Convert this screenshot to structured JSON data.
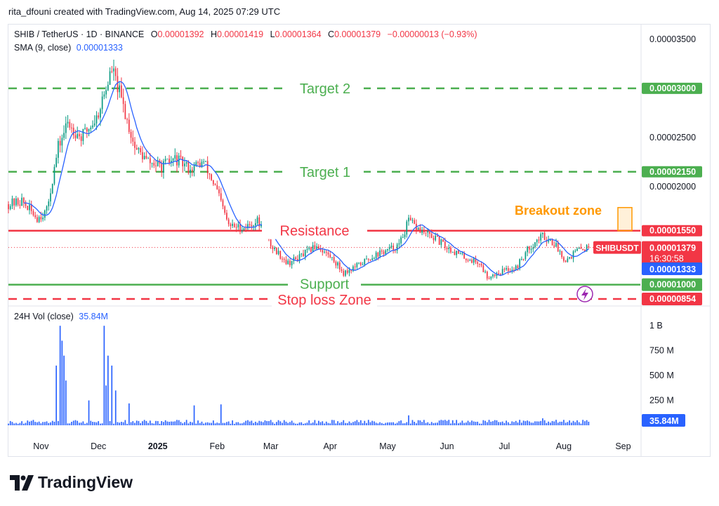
{
  "header": {
    "credit": "rita_dfouni created with TradingView.com, Aug 14, 2025 07:29 UTC"
  },
  "legend": {
    "symbol": "SHIB / TetherUS · 1D · BINANCE",
    "open_label": "O",
    "open": "0.00001392",
    "high_label": "H",
    "high": "0.00001419",
    "low_label": "L",
    "low": "0.00001364",
    "close_label": "C",
    "close": "0.00001379",
    "change": "−0.00000013 (−0.93%)",
    "sma_label": "SMA (9, close)",
    "sma_value": "0.00001333",
    "vol_label": "24H Vol (close)",
    "vol_value": "35.84M"
  },
  "colors": {
    "up": "#089981",
    "down": "#f23645",
    "sma": "#2962ff",
    "target": "#4caf50",
    "resistance": "#f23645",
    "breakout": "#ff9800",
    "vol": "#2962ff",
    "text": "#131722"
  },
  "annotations": {
    "target2": "Target 2",
    "target1": "Target 1",
    "resistance": "Resistance",
    "support": "Support",
    "stoploss": "Stop loss Zone",
    "breakout": "Breakout zone"
  },
  "price_scale": {
    "ticks": [
      "0.00003500",
      "0.00002500",
      "0.00002000"
    ],
    "tags": {
      "target2": "0.00003000",
      "target1": "0.00002150",
      "resistance": "0.00001550",
      "last": "0.00001379",
      "countdown": "16:30:58",
      "sma": "0.00001333",
      "support": "0.00001000",
      "stoploss": "0.00000854",
      "symbol_tag": "SHIBUSDT"
    }
  },
  "volume_scale": {
    "ticks": [
      "1 B",
      "750 M",
      "500 M",
      "250 M"
    ],
    "last": "35.84M"
  },
  "time_axis": [
    "Nov",
    "Dec",
    "2025",
    "Feb",
    "Mar",
    "Apr",
    "May",
    "Jun",
    "Jul",
    "Aug",
    "Sep"
  ],
  "chart_data": {
    "type": "candlestick",
    "title": "SHIB / TetherUS · 1D · BINANCE",
    "interval": "1D",
    "x_range": [
      "2024-10-15",
      "2025-09-10"
    ],
    "y_range": [
      7.9e-06,
      3.65e-05
    ],
    "volume_range": [
      0,
      1100000000
    ],
    "levels": [
      {
        "name": "Target 2",
        "value": 3e-05,
        "color": "#4caf50",
        "style": "dashed"
      },
      {
        "name": "Target 1",
        "value": 2.15e-05,
        "color": "#4caf50",
        "style": "dashed"
      },
      {
        "name": "Resistance",
        "value": 1.55e-05,
        "color": "#f23645",
        "style": "solid"
      },
      {
        "name": "Support",
        "value": 1e-05,
        "color": "#4caf50",
        "style": "solid"
      },
      {
        "name": "Stop loss Zone",
        "value": 8.54e-06,
        "color": "#f23645",
        "style": "dashed"
      }
    ],
    "breakout_zone": {
      "from": 1.55e-05,
      "to": 1.7e-05,
      "color": "#ff9800"
    },
    "waypoints": [
      [
        "2024-10-15",
        1.82e-05
      ],
      [
        "2024-10-22",
        1.85e-05
      ],
      [
        "2024-10-30",
        1.68e-05
      ],
      [
        "2024-11-04",
        1.75e-05
      ],
      [
        "2024-11-10",
        2.4e-05
      ],
      [
        "2024-11-15",
        2.65e-05
      ],
      [
        "2024-11-22",
        2.5e-05
      ],
      [
        "2024-11-30",
        2.7e-05
      ],
      [
        "2024-12-05",
        3e-05
      ],
      [
        "2024-12-08",
        3.2e-05
      ],
      [
        "2024-12-12",
        2.95e-05
      ],
      [
        "2024-12-20",
        2.4e-05
      ],
      [
        "2024-12-27",
        2.25e-05
      ],
      [
        "2025-01-03",
        2.2e-05
      ],
      [
        "2025-01-10",
        2.28e-05
      ],
      [
        "2025-01-18",
        2.18e-05
      ],
      [
        "2025-01-25",
        2.25e-05
      ],
      [
        "2025-02-01",
        1.95e-05
      ],
      [
        "2025-02-07",
        1.6e-05
      ],
      [
        "2025-02-15",
        1.58e-05
      ],
      [
        "2025-02-22",
        1.65e-05
      ],
      [
        "2025-03-01",
        1.4e-05
      ],
      [
        "2025-03-10",
        1.22e-05
      ],
      [
        "2025-03-16",
        1.28e-05
      ],
      [
        "2025-03-25",
        1.4e-05
      ],
      [
        "2025-04-03",
        1.25e-05
      ],
      [
        "2025-04-08",
        1.12e-05
      ],
      [
        "2025-04-16",
        1.2e-05
      ],
      [
        "2025-04-24",
        1.3e-05
      ],
      [
        "2025-05-01",
        1.35e-05
      ],
      [
        "2025-05-07",
        1.4e-05
      ],
      [
        "2025-05-12",
        1.65e-05
      ],
      [
        "2025-05-18",
        1.55e-05
      ],
      [
        "2025-05-25",
        1.48e-05
      ],
      [
        "2025-06-01",
        1.38e-05
      ],
      [
        "2025-06-10",
        1.28e-05
      ],
      [
        "2025-06-18",
        1.22e-05
      ],
      [
        "2025-06-22",
        1.08e-05
      ],
      [
        "2025-06-30",
        1.14e-05
      ],
      [
        "2025-07-07",
        1.17e-05
      ],
      [
        "2025-07-14",
        1.38e-05
      ],
      [
        "2025-07-21",
        1.5e-05
      ],
      [
        "2025-07-27",
        1.42e-05
      ],
      [
        "2025-08-02",
        1.25e-05
      ],
      [
        "2025-08-08",
        1.35e-05
      ],
      [
        "2025-08-14",
        1.379e-05
      ]
    ],
    "volume_spikes": [
      [
        "2024-11-11",
        1000000000
      ],
      [
        "2024-11-12",
        850000000
      ],
      [
        "2024-11-13",
        700000000
      ],
      [
        "2024-11-09",
        600000000
      ],
      [
        "2024-11-14",
        450000000
      ],
      [
        "2024-12-04",
        1000000000
      ],
      [
        "2024-12-06",
        700000000
      ],
      [
        "2024-12-08",
        600000000
      ],
      [
        "2024-12-05",
        400000000
      ],
      [
        "2024-12-10",
        350000000
      ],
      [
        "2024-11-26",
        250000000
      ],
      [
        "2024-12-17",
        220000000
      ],
      [
        "2025-01-20",
        200000000
      ],
      [
        "2025-02-03",
        210000000
      ],
      [
        "2025-05-12",
        100000000
      ],
      [
        "2025-07-21",
        70000000
      ]
    ],
    "last_price": 1.379e-05,
    "last_volume": 35840000
  }
}
